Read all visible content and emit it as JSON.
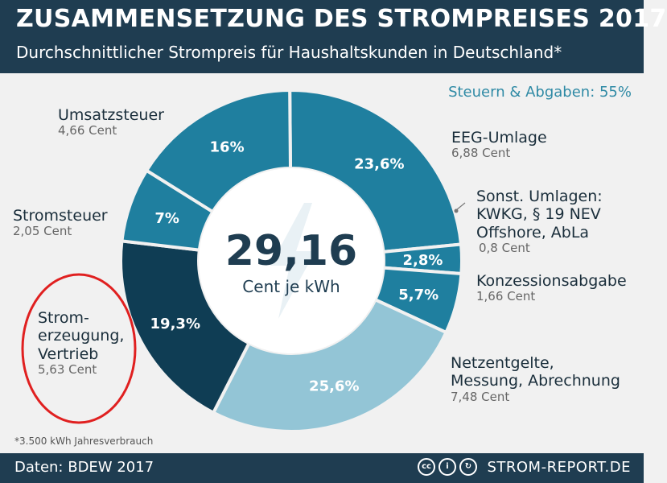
{
  "header": {
    "title": "ZUSAMMENSETZUNG DES STROMPREISES 2017",
    "subtitle": "Durchschnittlicher Strompreis für Haushaltskunden in Deutschland*"
  },
  "taxes_label": "Steuern & Abgaben: 55%",
  "center": {
    "value": "29,16",
    "unit": "Cent je kWh"
  },
  "chart_data": {
    "type": "pie",
    "title": "ZUSAMMENSETZUNG DES STROMPREISES 2017",
    "total_cent_per_kwh": 29.16,
    "slices": [
      {
        "id": "eeg",
        "name": "EEG-Umlage",
        "value_cent": 6.88,
        "percent": 23.6,
        "label": "23,6%",
        "color": "#1f7f9f"
      },
      {
        "id": "sonst",
        "name": "Sonst. Umlagen: KWKG, § 19 NEV Offshore, AbLa",
        "value_cent": 0.8,
        "percent": 2.8,
        "label": "2,8%",
        "color": "#1f7f9f"
      },
      {
        "id": "konz",
        "name": "Konzessionsabgabe",
        "value_cent": 1.66,
        "percent": 5.7,
        "label": "5,7%",
        "color": "#1f7f9f"
      },
      {
        "id": "netz",
        "name": "Netzentgelte, Messung, Abrechnung",
        "value_cent": 7.48,
        "percent": 25.6,
        "label": "25,6%",
        "color": "#93c5d6"
      },
      {
        "id": "erz",
        "name": "Stromerzeugung, Vertrieb",
        "value_cent": 5.63,
        "percent": 19.3,
        "label": "19,3%",
        "color": "#0f3d54"
      },
      {
        "id": "stromst",
        "name": "Stromsteuer",
        "value_cent": 2.05,
        "percent": 7,
        "label": "7%",
        "color": "#1f7f9f"
      },
      {
        "id": "ust",
        "name": "Umsatzsteuer",
        "value_cent": 4.66,
        "percent": 16,
        "label": "16%",
        "color": "#1f7f9f"
      }
    ]
  },
  "labels": {
    "ust": {
      "name": "Umsatzsteuer",
      "value": "4,66 Cent"
    },
    "eeg": {
      "name": "EEG-Umlage",
      "value": "6,88 Cent"
    },
    "sonst": {
      "line1": "Sonst. Umlagen:",
      "line2": "KWKG, § 19 NEV",
      "line3": "Offshore, AbLa",
      "value": "0,8 Cent"
    },
    "konz": {
      "name": "Konzessionsabgabe",
      "value": "1,66 Cent"
    },
    "netz": {
      "line1": "Netzentgelte,",
      "line2": "Messung, Abrechnung",
      "value": "7,48 Cent"
    },
    "stromst": {
      "name": "Stromsteuer",
      "value": "2,05 Cent"
    },
    "erz": {
      "line1": "Strom-",
      "line2": "erzeugung,",
      "line3": "Vertrieb",
      "value": "5,63 Cent"
    }
  },
  "footnote": "*3.500 kWh Jahresverbrauch",
  "footer": {
    "source": "Daten: BDEW 2017",
    "brand": "STROM-REPORT.DE"
  },
  "colors": {
    "header_bg": "#1f3d51",
    "accent": "#2f8aa5",
    "highlight_circle": "#e02020"
  }
}
